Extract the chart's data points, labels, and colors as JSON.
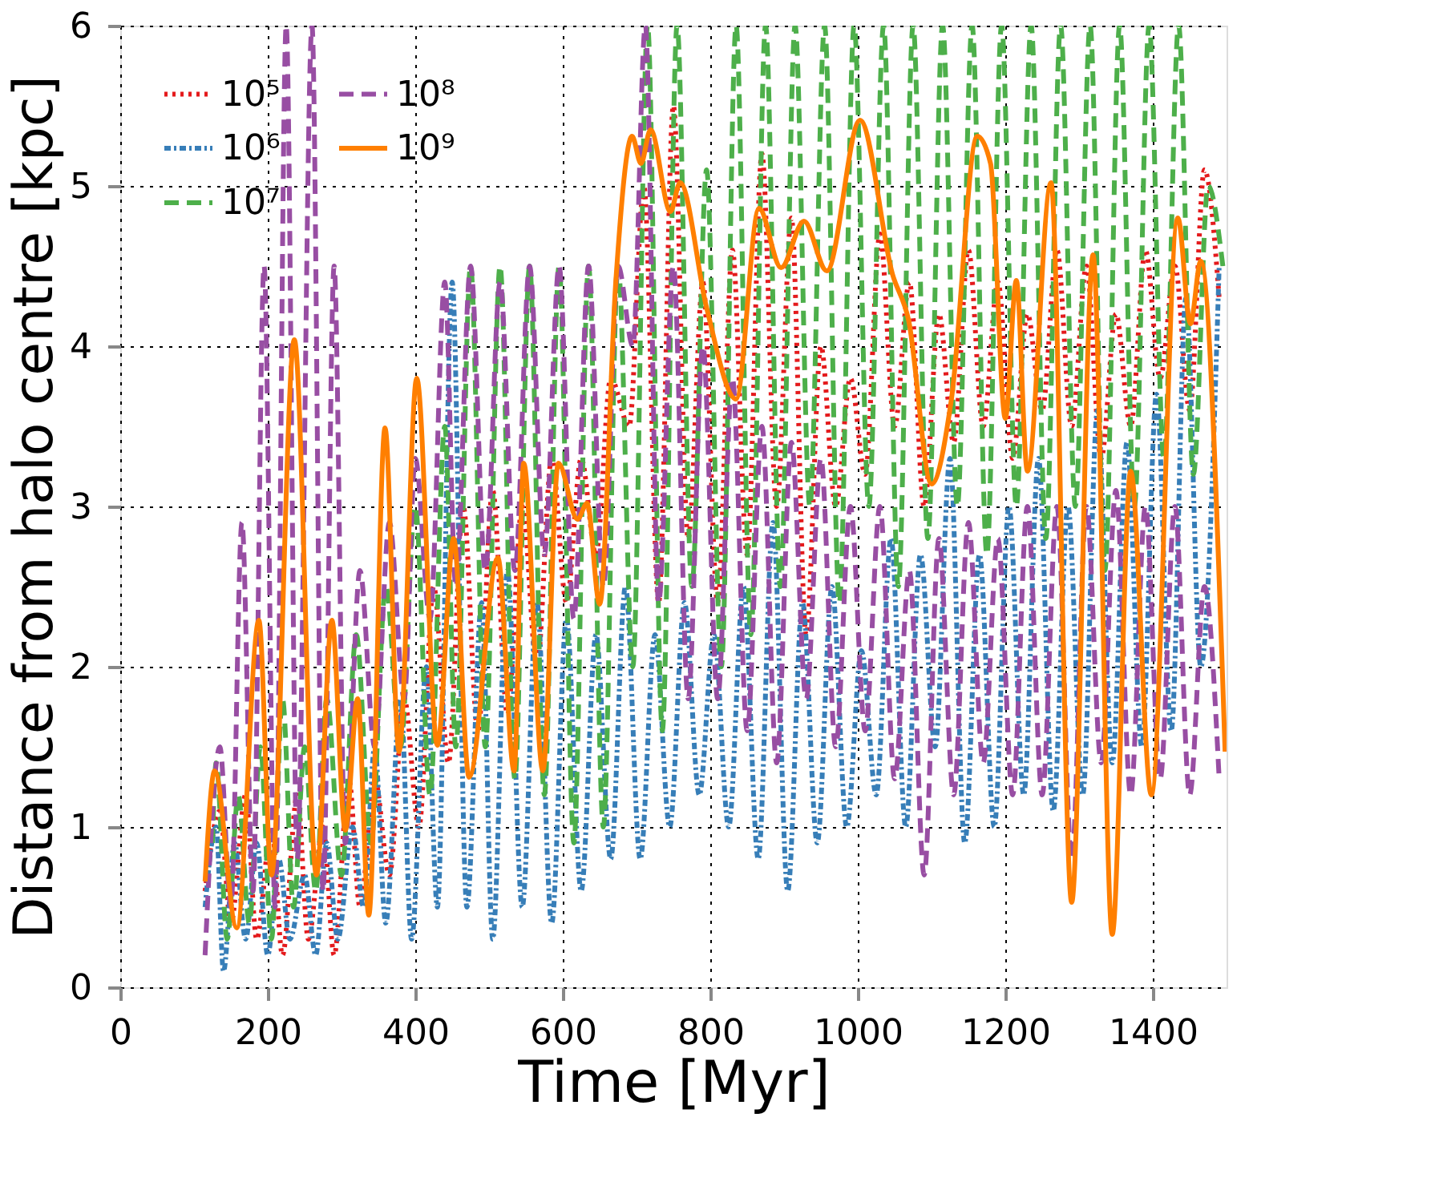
{
  "chart_data": {
    "type": "line",
    "xlabel": "Time [Myr]",
    "ylabel": "Distance from halo centre [kpc]",
    "xlim": [
      0,
      1500
    ],
    "xticks": [
      0,
      200,
      400,
      600,
      800,
      1000,
      1200,
      1400
    ],
    "ylim": [
      0,
      6
    ],
    "yticks": [
      0,
      1,
      2,
      3,
      4,
      5,
      6
    ],
    "grid": true,
    "legend": "top left",
    "marker": "none",
    "series": [
      {
        "name": "10⁵",
        "color": "#e41a1c",
        "line_style": "dotted",
        "x": [
          115,
          135,
          150,
          170,
          185,
          205,
          220,
          240,
          255,
          275,
          290,
          310,
          325,
          345,
          365,
          385,
          405,
          425,
          445,
          465,
          485,
          505,
          525,
          545,
          565,
          585,
          605,
          625,
          645,
          665,
          690,
          710,
          730,
          750,
          770,
          790,
          810,
          830,
          850,
          870,
          890,
          910,
          930,
          950,
          970,
          990,
          1010,
          1030,
          1050,
          1070,
          1090,
          1110,
          1130,
          1150,
          1170,
          1190,
          1210,
          1230,
          1250,
          1270,
          1290,
          1310,
          1330,
          1350,
          1370,
          1390,
          1410,
          1430,
          1450,
          1470,
          1490
        ],
        "values": [
          0.6,
          1.1,
          0.4,
          1.2,
          0.3,
          1.0,
          0.2,
          1.2,
          0.3,
          1.0,
          0.2,
          1.3,
          0.5,
          1.3,
          0.7,
          1.8,
          1.0,
          2.5,
          1.4,
          3.0,
          1.6,
          3.1,
          1.7,
          3.0,
          2.0,
          3.3,
          2.4,
          3.3,
          2.7,
          3.8,
          3.5,
          5.0,
          2.4,
          5.5,
          2.8,
          4.4,
          2.4,
          4.6,
          2.7,
          5.2,
          3.0,
          4.8,
          2.2,
          4.0,
          3.0,
          3.8,
          3.2,
          4.7,
          3.5,
          4.4,
          3.0,
          4.2,
          3.4,
          4.6,
          3.5,
          4.4,
          3.3,
          4.2,
          3.6,
          4.6,
          3.5,
          4.5,
          3.3,
          4.2,
          3.5,
          4.6,
          3.8,
          4.5,
          3.6,
          5.1,
          4.3
        ]
      },
      {
        "name": "10⁶",
        "color": "#377eb8",
        "line_style": "dashdot",
        "x": [
          115,
          130,
          140,
          155,
          170,
          185,
          200,
          215,
          230,
          250,
          265,
          280,
          295,
          315,
          330,
          345,
          360,
          380,
          395,
          415,
          430,
          450,
          470,
          490,
          505,
          525,
          545,
          565,
          585,
          605,
          625,
          645,
          665,
          685,
          705,
          725,
          745,
          765,
          785,
          805,
          825,
          845,
          865,
          885,
          905,
          925,
          945,
          965,
          985,
          1005,
          1025,
          1045,
          1065,
          1085,
          1105,
          1125,
          1145,
          1165,
          1185,
          1205,
          1225,
          1245,
          1265,
          1285,
          1305,
          1325,
          1345,
          1365,
          1385,
          1405,
          1425,
          1445,
          1465,
          1490
        ],
        "values": [
          0.5,
          1.0,
          0.1,
          0.9,
          0.3,
          0.9,
          0.2,
          0.8,
          0.3,
          0.7,
          0.2,
          0.9,
          0.3,
          1.0,
          0.5,
          1.5,
          0.4,
          1.8,
          0.3,
          2.0,
          0.5,
          4.4,
          0.5,
          2.4,
          0.3,
          2.6,
          0.5,
          2.4,
          0.4,
          2.3,
          0.6,
          2.2,
          0.8,
          2.5,
          0.8,
          2.2,
          1.0,
          2.4,
          1.2,
          2.2,
          1.0,
          2.5,
          0.8,
          2.9,
          0.6,
          2.4,
          0.9,
          2.5,
          1.0,
          2.1,
          1.2,
          2.8,
          1.0,
          2.7,
          1.5,
          3.3,
          0.9,
          2.7,
          1.0,
          3.0,
          1.2,
          3.3,
          1.1,
          3.0,
          1.2,
          3.6,
          1.4,
          3.4,
          1.5,
          3.7,
          1.6,
          4.3,
          2.0,
          4.5
        ]
      },
      {
        "name": "10⁷",
        "color": "#4daf4a",
        "line_style": "dashed",
        "x": [
          125,
          130,
          145,
          160,
          175,
          190,
          205,
          220,
          235,
          250,
          265,
          280,
          300,
          320,
          340,
          360,
          380,
          400,
          420,
          440,
          455,
          475,
          495,
          515,
          535,
          555,
          575,
          595,
          615,
          635,
          655,
          675,
          695,
          715,
          735,
          755,
          775,
          795,
          815,
          835,
          855,
          875,
          895,
          915,
          935,
          955,
          975,
          995,
          1015,
          1035,
          1055,
          1075,
          1095,
          1115,
          1135,
          1155,
          1175,
          1195,
          1215,
          1235,
          1255,
          1275,
          1295,
          1315,
          1335,
          1355,
          1375,
          1395,
          1415,
          1435,
          1455,
          1475,
          1495
        ],
        "values": [
          0.9,
          1.4,
          0.3,
          1.2,
          0.4,
          1.5,
          0.3,
          1.8,
          0.5,
          1.5,
          0.6,
          1.8,
          0.7,
          2.2,
          0.9,
          2.5,
          1.5,
          3.0,
          1.2,
          3.5,
          1.5,
          4.5,
          1.5,
          4.5,
          1.3,
          4.5,
          1.2,
          4.5,
          0.9,
          4.5,
          1.0,
          4.5,
          2.0,
          6,
          1.6,
          6,
          2.5,
          5.1,
          2.0,
          6,
          2.2,
          6,
          2.5,
          6,
          3.0,
          6,
          2.4,
          6,
          3.0,
          6,
          2.5,
          6,
          2.8,
          6,
          3.0,
          6,
          2.7,
          6,
          3.0,
          6,
          2.8,
          6,
          3.0,
          6,
          2.6,
          6,
          3.0,
          6,
          3.3,
          6,
          3.2,
          5.0,
          4.5
        ]
      },
      {
        "name": "10⁸",
        "color": "#984ea3",
        "line_style": "dashed",
        "x": [
          115,
          135,
          150,
          165,
          180,
          195,
          210,
          225,
          240,
          260,
          275,
          290,
          305,
          325,
          345,
          365,
          385,
          400,
          420,
          440,
          455,
          475,
          495,
          515,
          535,
          555,
          575,
          595,
          615,
          635,
          655,
          675,
          695,
          712,
          730,
          750,
          770,
          790,
          810,
          830,
          850,
          870,
          890,
          910,
          930,
          950,
          970,
          990,
          1010,
          1030,
          1050,
          1070,
          1090,
          1110,
          1130,
          1150,
          1170,
          1190,
          1210,
          1230,
          1250,
          1270,
          1290,
          1310,
          1330,
          1350,
          1370,
          1390,
          1410,
          1430,
          1450,
          1470,
          1490
        ],
        "values": [
          0.2,
          1.5,
          0.5,
          2.9,
          0.6,
          4.5,
          0.5,
          6,
          0.8,
          6,
          0.6,
          4.5,
          0.9,
          2.6,
          1.5,
          2.9,
          1.8,
          3.3,
          2.3,
          4.4,
          2.5,
          4.5,
          2.6,
          4.4,
          2.6,
          4.5,
          2.7,
          4.5,
          2.3,
          4.5,
          2.5,
          4.5,
          4.0,
          6,
          2.4,
          4.5,
          1.8,
          4.0,
          1.8,
          3.8,
          1.6,
          3.5,
          1.4,
          3.4,
          1.8,
          3.3,
          1.5,
          3.0,
          1.6,
          3.0,
          1.3,
          2.6,
          0.7,
          2.8,
          1.2,
          2.9,
          1.4,
          2.8,
          1.2,
          3.0,
          1.2,
          3.0,
          0.8,
          3.0,
          1.4,
          3.1,
          1.2,
          3.0,
          1.3,
          3.0,
          1.2,
          2.5,
          1.3
        ]
      },
      {
        "name": "10⁹",
        "color": "#ff7f00",
        "line_style": "solid",
        "x": [
          115,
          128,
          158,
          188,
          205,
          236,
          266,
          287,
          305,
          322,
          337,
          359,
          378,
          402,
          430,
          452,
          473,
          512,
          534,
          547,
          573,
          594,
          620,
          633,
          650,
          672,
          694,
          706,
          719,
          746,
          759,
          795,
          835,
          866,
          896,
          927,
          958,
          1003,
          1047,
          1069,
          1100,
          1127,
          1162,
          1180,
          1200,
          1215,
          1230,
          1262,
          1290,
          1319,
          1345,
          1370,
          1398,
          1434,
          1451,
          1465,
          1498
        ],
        "values": [
          0.66,
          1.35,
          0.37,
          2.29,
          0.7,
          4.04,
          0.7,
          2.29,
          0.98,
          1.8,
          0.45,
          3.49,
          1.47,
          3.8,
          1.51,
          2.8,
          1.31,
          2.68,
          1.35,
          3.27,
          1.35,
          3.27,
          2.92,
          3.02,
          2.39,
          4.41,
          5.31,
          5.14,
          5.35,
          4.84,
          5.02,
          4.24,
          3.67,
          4.86,
          4.49,
          4.78,
          4.47,
          5.41,
          4.45,
          4.16,
          3.14,
          3.67,
          5.31,
          5.14,
          3.55,
          4.41,
          3.22,
          5.02,
          0.53,
          4.57,
          0.33,
          3.22,
          1.2,
          4.8,
          4.14,
          4.53,
          1.47
        ]
      }
    ]
  }
}
